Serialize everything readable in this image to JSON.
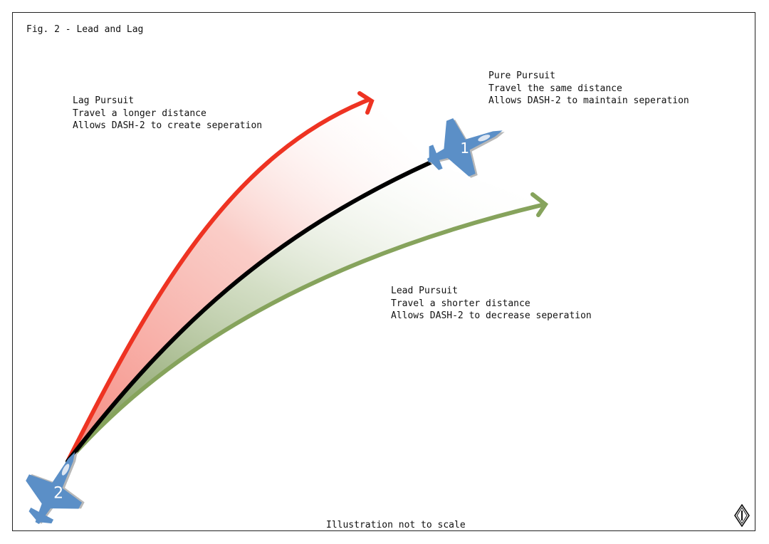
{
  "figure": {
    "title": "Fig. 2 - Lead and Lag",
    "footer_note": "Illustration not to scale"
  },
  "lag_pursuit": {
    "heading": "Lag Pursuit",
    "line1": "Travel a longer distance",
    "line2": "Allows DASH-2 to create seperation",
    "color": "#ee3322"
  },
  "pure_pursuit": {
    "heading": "Pure Pursuit",
    "line1": "Travel the same distance",
    "line2": "Allows DASH-2 to maintain seperation",
    "color": "#000000"
  },
  "lead_pursuit": {
    "heading": "Lead Pursuit",
    "line1": "Travel a shorter distance",
    "line2": "Allows DASH-2 to decrease seperation",
    "color": "#86a35c"
  },
  "aircraft": {
    "lead_number": "1",
    "wingman_number": "2",
    "color": "#5b8fc7"
  },
  "icons": {
    "corner": "compass-diamond-icon"
  }
}
